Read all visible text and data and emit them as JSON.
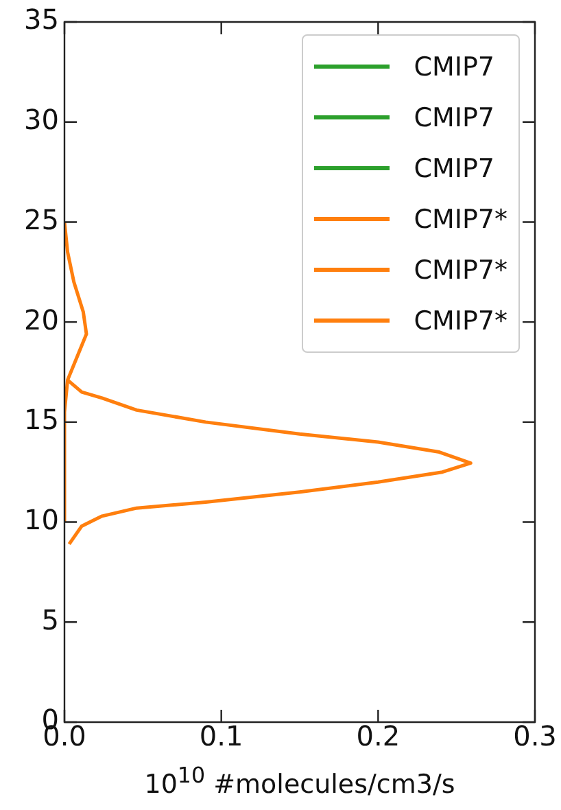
{
  "chart_data": {
    "type": "line",
    "xlabel": "10$^{10}$ #molecules/cm3/s",
    "xlim": [
      0,
      0.3
    ],
    "xticks": [
      {
        "value": 0,
        "label": "0.0"
      },
      0.1,
      0.2,
      0.3
    ],
    "ylim": [
      0,
      35
    ],
    "yticks": [
      0,
      5,
      10,
      15,
      20,
      25,
      30,
      35
    ],
    "grid": false,
    "legend": "top right",
    "marker": "none",
    "line_style": "solid",
    "series": [
      {
        "name": "CMIP7",
        "color": "#2ca02c",
        "x": [
          null
        ],
        "values": [
          null
        ]
      },
      {
        "name": "CMIP7",
        "color": "#2ca02c",
        "x": [
          null
        ],
        "values": [
          null
        ]
      },
      {
        "name": "CMIP7",
        "color": "#2ca02c",
        "x": [
          null
        ],
        "values": [
          null
        ]
      },
      {
        "name": "CMIP7*",
        "color": "#ff7f0e",
        "x": [
          0,
          0,
          0.002,
          0.014,
          0.012,
          0.006,
          0.002,
          0
        ],
        "values": [
          10,
          15.5,
          17.1,
          19.4,
          20.5,
          22,
          23.5,
          25
        ]
      },
      {
        "name": "CMIP7*",
        "color": "#ff7f0e",
        "x": [
          0.003,
          0.011,
          0.024,
          0.046,
          0.09,
          0.15,
          0.2,
          0.241,
          0.259,
          0.239,
          0.2,
          0.15,
          0.09,
          0.046,
          0.024,
          0.011,
          0.002
        ],
        "values": [
          8.9,
          9.8,
          10.3,
          10.7,
          11,
          11.5,
          12,
          12.5,
          12.95,
          13.5,
          14,
          14.4,
          15,
          15.6,
          16.2,
          16.5,
          17.1
        ]
      },
      {
        "name": "CMIP7*",
        "color": "#ff7f0e",
        "x": [
          null
        ],
        "values": [
          null
        ]
      }
    ]
  }
}
